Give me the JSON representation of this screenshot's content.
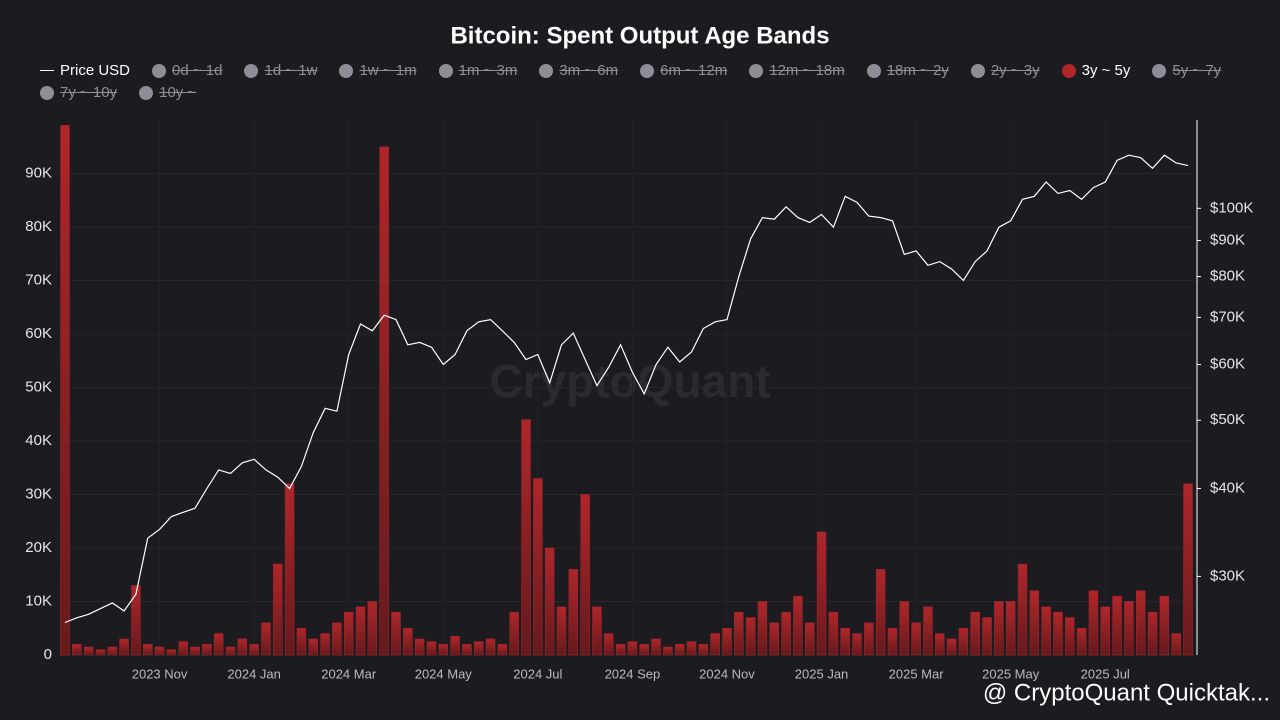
{
  "chart_data": {
    "type": "combo",
    "title": "Bitcoin: Spent Output Age Bands",
    "watermark": "CryptoQuant",
    "footer": "@ CryptoQuant Quicktak...",
    "hidden_series": [
      "0d ~ 1d",
      "1d ~ 1w",
      "1w ~ 1m",
      "1m ~ 3m",
      "3m ~ 6m",
      "6m ~ 12m",
      "12m ~ 18m",
      "18m ~ 2y",
      "2y ~ 3y",
      "5y ~ 7y",
      "7y ~ 10y",
      "10y ~"
    ],
    "categories": [
      null,
      null,
      null,
      null,
      null,
      null,
      null,
      null,
      "2023 Nov",
      null,
      null,
      null,
      null,
      null,
      null,
      null,
      "2024 Jan",
      null,
      null,
      null,
      null,
      null,
      null,
      null,
      "2024 Mar",
      null,
      null,
      null,
      null,
      null,
      null,
      null,
      "2024 May",
      null,
      null,
      null,
      null,
      null,
      null,
      null,
      "2024 Jul",
      null,
      null,
      null,
      null,
      null,
      null,
      null,
      "2024 Sep",
      null,
      null,
      null,
      null,
      null,
      null,
      null,
      "2024 Nov",
      null,
      null,
      null,
      null,
      null,
      null,
      null,
      "2025 Jan",
      null,
      null,
      null,
      null,
      null,
      null,
      null,
      "2025 Mar",
      null,
      null,
      null,
      null,
      null,
      null,
      null,
      "2025 May",
      null,
      null,
      null,
      null,
      null,
      null,
      null,
      "2025 Jul",
      null,
      null,
      null,
      null,
      null,
      null,
      null
    ],
    "series": [
      {
        "name": "Price USD",
        "type": "line",
        "axis": "y2",
        "color": "#ffffff",
        "values": [
          25800,
          26200,
          26500,
          27000,
          27500,
          26800,
          28300,
          34000,
          35000,
          36500,
          37000,
          37500,
          40000,
          42500,
          42000,
          43500,
          44000,
          42500,
          41500,
          40000,
          43000,
          48000,
          52000,
          51500,
          62000,
          68500,
          67000,
          70500,
          69500,
          64000,
          64500,
          63500,
          60000,
          62000,
          67000,
          69000,
          69500,
          67000,
          64500,
          61000,
          62000,
          56500,
          64000,
          66500,
          61000,
          56000,
          59500,
          64000,
          58500,
          54500,
          60000,
          63500,
          60500,
          62500,
          67500,
          69000,
          69500,
          80000,
          90500,
          97000,
          96500,
          100500,
          97000,
          95500,
          98000,
          94000,
          104000,
          102000,
          97500,
          97000,
          96000,
          86000,
          87000,
          83000,
          84000,
          82000,
          79000,
          84000,
          87000,
          94000,
          96000,
          103000,
          104000,
          109000,
          105000,
          106000,
          103000,
          107000,
          109000,
          117000,
          119000,
          118000,
          114000,
          119000,
          116000,
          115000
        ]
      },
      {
        "name": "3y ~ 5y",
        "type": "bar",
        "color": "#b0262a",
        "values": [
          99000,
          2000,
          1500,
          1000,
          1500,
          3000,
          13000,
          2000,
          1500,
          1000,
          2500,
          1500,
          2000,
          4000,
          1500,
          3000,
          2000,
          6000,
          17000,
          32000,
          5000,
          3000,
          4000,
          6000,
          8000,
          9000,
          10000,
          95000,
          8000,
          5000,
          3000,
          2500,
          2000,
          3500,
          2000,
          2500,
          3000,
          2000,
          8000,
          44000,
          33000,
          20000,
          9000,
          16000,
          30000,
          9000,
          4000,
          2000,
          2500,
          2000,
          3000,
          1500,
          2000,
          2500,
          2000,
          4000,
          5000,
          8000,
          7000,
          10000,
          6000,
          8000,
          11000,
          6000,
          23000,
          8000,
          5000,
          4000,
          6000,
          16000,
          5000,
          10000,
          6000,
          9000,
          4000,
          3000,
          5000,
          8000,
          7000,
          10000,
          10000,
          17000,
          12000,
          9000,
          8000,
          7000,
          5000,
          12000,
          9000,
          11000,
          10000,
          12000,
          8000,
          11000,
          4000,
          32000
        ]
      }
    ],
    "ylim": [
      0,
      100000
    ],
    "yticks": [
      0,
      {
        "value": 10000,
        "label": "10K"
      },
      {
        "value": 20000,
        "label": "20K"
      },
      {
        "value": 30000,
        "label": "30K"
      },
      {
        "value": 40000,
        "label": "40K"
      },
      {
        "value": 50000,
        "label": "50K"
      },
      {
        "value": 60000,
        "label": "60K"
      },
      {
        "value": 70000,
        "label": "70K"
      },
      {
        "value": 80000,
        "label": "80K"
      },
      {
        "value": 90000,
        "label": "90K"
      }
    ],
    "y2lim": [
      23200,
      133500
    ],
    "y2log": true,
    "y2ticks": [
      {
        "value": 30000,
        "label": "$30K"
      },
      {
        "value": 40000,
        "label": "$40K"
      },
      {
        "value": 50000,
        "label": "$50K"
      },
      {
        "value": 60000,
        "label": "$60K"
      },
      {
        "value": 70000,
        "label": "$70K"
      },
      {
        "value": 80000,
        "label": "$80K"
      },
      {
        "value": 90000,
        "label": "$90K"
      },
      {
        "value": 100000,
        "label": "$100K"
      }
    ],
    "grid": true
  }
}
